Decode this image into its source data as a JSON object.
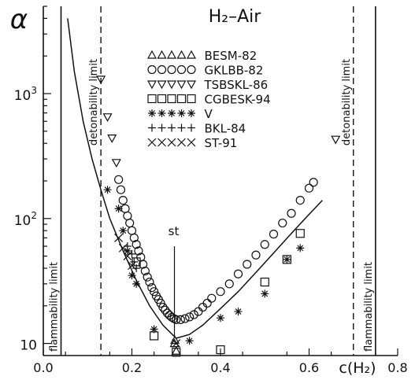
{
  "chart_data": {
    "type": "scatter",
    "title": "H₂–Air",
    "ylabel": "α",
    "xlabel": "c(H₂)",
    "x_ticks": [
      "0.0",
      "0.2",
      "0.4",
      "0.6",
      "0.8"
    ],
    "x_tick_values": [
      0.0,
      0.2,
      0.4,
      0.6,
      0.8
    ],
    "y_ticks": [
      {
        "value": 10,
        "base": "10",
        "exp": ""
      },
      {
        "value": 100,
        "base": "10",
        "exp": "2"
      },
      {
        "value": 1000,
        "base": "10",
        "exp": "3"
      }
    ],
    "xlim": [
      0.0,
      0.8
    ],
    "ylim": [
      8,
      5000
    ],
    "yscale": "log",
    "grid": false,
    "legend_position": "top-center",
    "vertical_lines": [
      {
        "x": 0.04,
        "label": "flammability limit",
        "style": "solid"
      },
      {
        "x": 0.75,
        "label": "flammability limit",
        "style": "solid"
      },
      {
        "x": 0.13,
        "label": "detonability limit",
        "style": "dashed"
      },
      {
        "x": 0.7,
        "label": "detonability limit",
        "style": "dashed"
      }
    ],
    "annotations": [
      {
        "text": "st",
        "x": 0.296
      }
    ],
    "curve": {
      "name": "",
      "x": [
        0.055,
        0.07,
        0.09,
        0.11,
        0.13,
        0.15,
        0.18,
        0.21,
        0.24,
        0.27,
        0.3,
        0.33,
        0.36,
        0.4,
        0.44,
        0.48,
        0.52,
        0.56,
        0.6,
        0.63
      ],
      "y": [
        4000,
        1500,
        600,
        300,
        170,
        100,
        55,
        32,
        20,
        14,
        11,
        11.8,
        14,
        19,
        26,
        37,
        53,
        76,
        108,
        140
      ]
    },
    "series": [
      {
        "name": "BESM-82",
        "marker": "triangle-up",
        "x": [
          0.297,
          0.296,
          0.3
        ],
        "y": [
          10.6,
          10.0,
          8.7
        ]
      },
      {
        "name": "GKLBB-82",
        "marker": "circle",
        "x": [
          0.17,
          0.175,
          0.18,
          0.185,
          0.19,
          0.195,
          0.2,
          0.205,
          0.21,
          0.215,
          0.22,
          0.225,
          0.23,
          0.235,
          0.24,
          0.245,
          0.25,
          0.255,
          0.26,
          0.265,
          0.27,
          0.275,
          0.28,
          0.285,
          0.29,
          0.295,
          0.3,
          0.31,
          0.32,
          0.33,
          0.34,
          0.35,
          0.36,
          0.37,
          0.38,
          0.4,
          0.42,
          0.44,
          0.46,
          0.48,
          0.5,
          0.52,
          0.54,
          0.56,
          0.58,
          0.6,
          0.61
        ],
        "y": [
          205,
          170,
          140,
          120,
          105,
          92,
          80,
          70,
          62,
          55,
          49,
          43,
          38,
          34,
          31,
          28,
          26,
          24,
          22.5,
          21,
          19.5,
          18.5,
          17.5,
          16.8,
          16.2,
          15.8,
          15.5,
          15.5,
          15.8,
          16.3,
          17,
          18,
          19.5,
          21,
          23,
          26,
          30,
          36,
          43,
          51,
          62,
          75,
          92,
          110,
          140,
          175,
          195
        ]
      },
      {
        "name": "TSBSKL-86",
        "marker": "triangle-down",
        "x": [
          0.13,
          0.145,
          0.155,
          0.165,
          0.66
        ],
        "y": [
          1300,
          650,
          440,
          280,
          430
        ]
      },
      {
        "name": "CGBESK-94",
        "marker": "square",
        "x": [
          0.21,
          0.25,
          0.3,
          0.4,
          0.5,
          0.55,
          0.58
        ],
        "y": [
          45,
          11.5,
          8.5,
          8.9,
          31,
          47,
          76
        ]
      },
      {
        "name": "V",
        "marker": "asterisk",
        "x": [
          0.145,
          0.17,
          0.18,
          0.19,
          0.2,
          0.21,
          0.25,
          0.33,
          0.4,
          0.44,
          0.5,
          0.55,
          0.58
        ],
        "y": [
          170,
          120,
          80,
          55,
          35,
          30,
          13,
          10.5,
          16,
          18,
          25,
          47,
          58
        ]
      },
      {
        "name": "BKL-84",
        "marker": "plus",
        "x": [
          0.19,
          0.2,
          0.205,
          0.21
        ],
        "y": [
          60,
          52,
          45,
          40
        ]
      },
      {
        "name": "ST-91",
        "marker": "cross",
        "x": [
          0.17,
          0.18,
          0.19,
          0.2,
          0.3
        ],
        "y": [
          70,
          58,
          50,
          42,
          10
        ]
      }
    ]
  }
}
